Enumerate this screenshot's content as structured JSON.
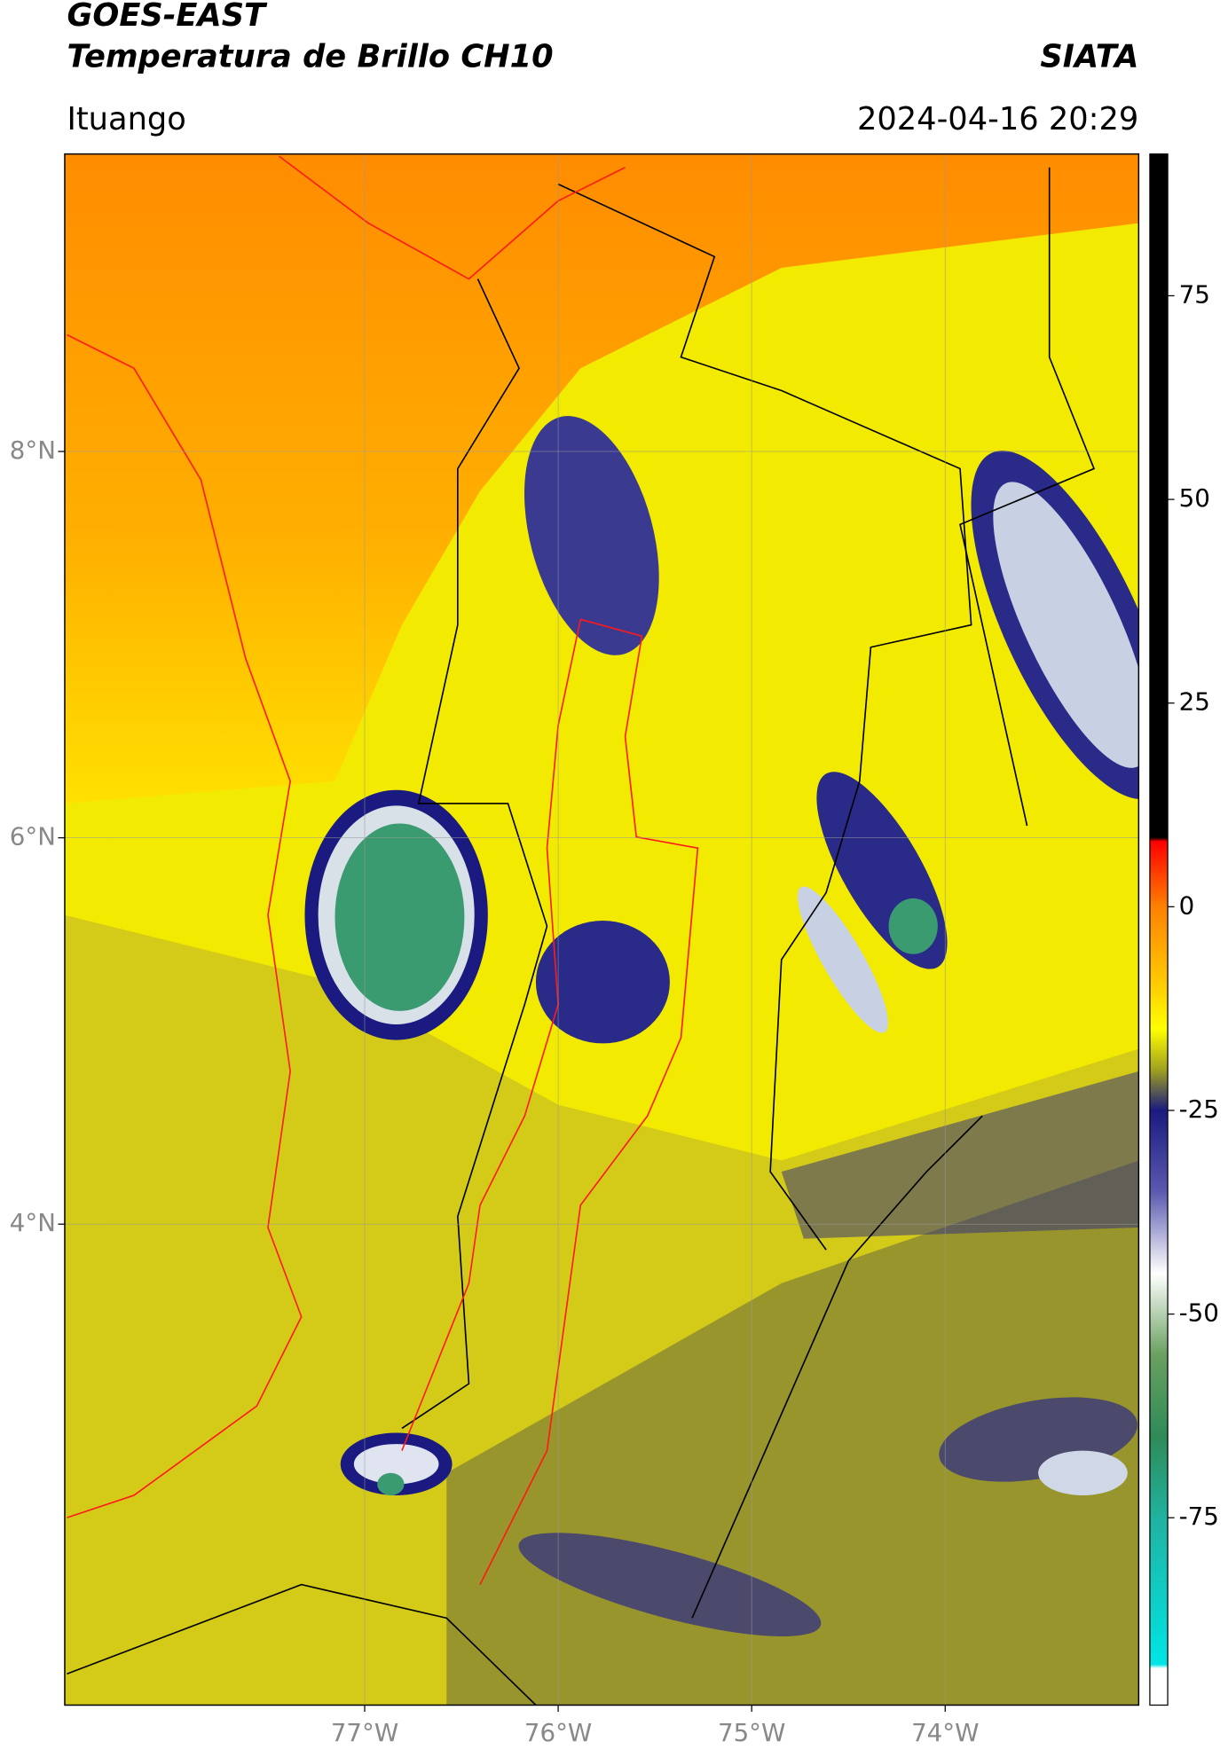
{
  "chart_data": {
    "type": "map",
    "title": "GOES-EAST",
    "subtitle": "Temperatura de Brillo CH10",
    "source": "SIATA",
    "location": "Ituango",
    "date": "2024-04-16 20:29",
    "xlim": [
      -78.55,
      -73.0
    ],
    "ylim": [
      1.51,
      9.54
    ],
    "xticks": [
      {
        "value": -77,
        "label": "77°W"
      },
      {
        "value": -76,
        "label": "76°W"
      },
      {
        "value": -75,
        "label": "75°W"
      },
      {
        "value": -74,
        "label": "74°W"
      }
    ],
    "yticks": [
      {
        "value": 8,
        "label": "8°N"
      },
      {
        "value": 6,
        "label": "6°N"
      },
      {
        "value": 4,
        "label": "4°N"
      }
    ],
    "grid": true,
    "colorbar": {
      "lim": [
        -98,
        92.4
      ],
      "ticks": [
        75,
        50,
        25,
        0,
        -25,
        -50,
        -75
      ],
      "colormap": [
        {
          "value": 92.4,
          "color": "#000000"
        },
        {
          "value": 8.5,
          "color": "#000000"
        },
        {
          "value": 8,
          "color": "#ff0000"
        },
        {
          "value": 0,
          "color": "#ff8000"
        },
        {
          "value": -10,
          "color": "#ffd000"
        },
        {
          "value": -15,
          "color": "#ffff00"
        },
        {
          "value": -20,
          "color": "#a0a020"
        },
        {
          "value": -25,
          "color": "#1a1a80"
        },
        {
          "value": -35,
          "color": "#5a5ab0"
        },
        {
          "value": -45,
          "color": "#ffffff"
        },
        {
          "value": -55,
          "color": "#6aa060"
        },
        {
          "value": -65,
          "color": "#2e8b57"
        },
        {
          "value": -75,
          "color": "#20b2a0"
        },
        {
          "value": -93,
          "color": "#00e5e5"
        },
        {
          "value": -93.5,
          "color": "#ffffff"
        },
        {
          "value": -98,
          "color": "#ffffff"
        }
      ]
    }
  }
}
